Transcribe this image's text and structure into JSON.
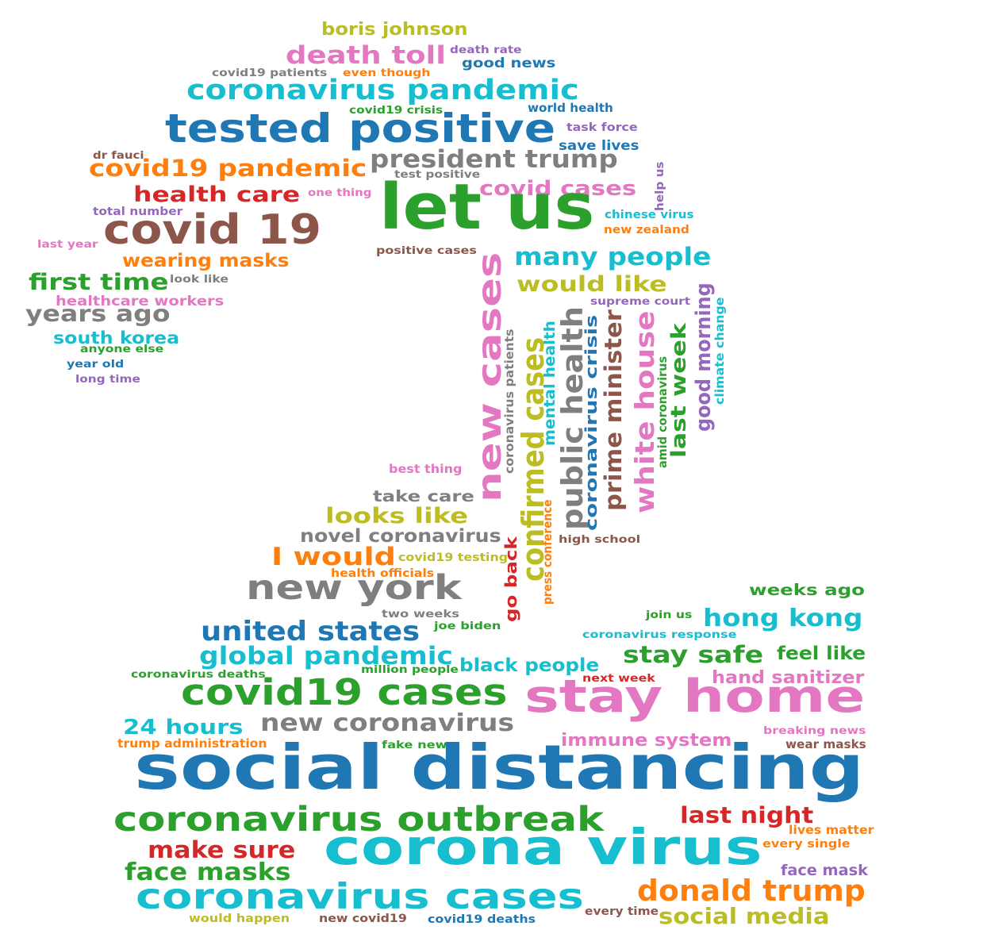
{
  "palette": {
    "blue": "#1f77b4",
    "orange": "#ff7f0e",
    "green": "#2ca02c",
    "red": "#d62728",
    "purple": "#9467bd",
    "brown": "#8c564b",
    "pink": "#e377c2",
    "gray": "#7f7f7f",
    "olive": "#bcbd22",
    "cyan": "#17becf"
  },
  "words": [
    {
      "text": "boris johnson",
      "color": "olive"
    },
    {
      "text": "death toll",
      "color": "pink"
    },
    {
      "text": "death rate",
      "color": "purple"
    },
    {
      "text": "good news",
      "color": "blue"
    },
    {
      "text": "covid19 patients",
      "color": "gray"
    },
    {
      "text": "even though",
      "color": "orange"
    },
    {
      "text": "coronavirus pandemic",
      "color": "cyan"
    },
    {
      "text": "covid19 crisis",
      "color": "green"
    },
    {
      "text": "world health",
      "color": "blue"
    },
    {
      "text": "tested positive",
      "color": "blue"
    },
    {
      "text": "task force",
      "color": "purple"
    },
    {
      "text": "save lives",
      "color": "blue"
    },
    {
      "text": "dr fauci",
      "color": "brown"
    },
    {
      "text": "covid19 pandemic",
      "color": "orange"
    },
    {
      "text": "president trump",
      "color": "gray"
    },
    {
      "text": "test positive",
      "color": "gray"
    },
    {
      "text": "help us",
      "color": "purple"
    },
    {
      "text": "health care",
      "color": "red"
    },
    {
      "text": "one thing",
      "color": "pink"
    },
    {
      "text": "covid cases",
      "color": "pink"
    },
    {
      "text": "let us",
      "color": "green"
    },
    {
      "text": "total number",
      "color": "purple"
    },
    {
      "text": "chinese virus",
      "color": "cyan"
    },
    {
      "text": "covid 19",
      "color": "brown"
    },
    {
      "text": "new zealand",
      "color": "orange"
    },
    {
      "text": "last year",
      "color": "pink"
    },
    {
      "text": "positive cases",
      "color": "brown"
    },
    {
      "text": "wearing masks",
      "color": "orange"
    },
    {
      "text": "many people",
      "color": "cyan"
    },
    {
      "text": "first time",
      "color": "green"
    },
    {
      "text": "look like",
      "color": "gray"
    },
    {
      "text": "would like",
      "color": "olive"
    },
    {
      "text": "healthcare workers",
      "color": "pink"
    },
    {
      "text": "supreme court",
      "color": "purple"
    },
    {
      "text": "years ago",
      "color": "gray"
    },
    {
      "text": "south korea",
      "color": "cyan"
    },
    {
      "text": "anyone else",
      "color": "green"
    },
    {
      "text": "year old",
      "color": "blue"
    },
    {
      "text": "long time",
      "color": "purple"
    },
    {
      "text": "new cases",
      "color": "pink"
    },
    {
      "text": "coronavirus patients",
      "color": "gray"
    },
    {
      "text": "confirmed cases",
      "color": "olive"
    },
    {
      "text": "mental health",
      "color": "cyan"
    },
    {
      "text": "public health",
      "color": "gray"
    },
    {
      "text": "coronavirus crisis",
      "color": "blue"
    },
    {
      "text": "prime minister",
      "color": "brown"
    },
    {
      "text": "white house",
      "color": "pink"
    },
    {
      "text": "amid coronavirus",
      "color": "green"
    },
    {
      "text": "last week",
      "color": "green"
    },
    {
      "text": "good morning",
      "color": "purple"
    },
    {
      "text": "climate change",
      "color": "cyan"
    },
    {
      "text": "best thing",
      "color": "pink"
    },
    {
      "text": "take care",
      "color": "gray"
    },
    {
      "text": "looks like",
      "color": "olive"
    },
    {
      "text": "novel coronavirus",
      "color": "gray"
    },
    {
      "text": "high school",
      "color": "brown"
    },
    {
      "text": "I would",
      "color": "orange"
    },
    {
      "text": "covid19 testing",
      "color": "olive"
    },
    {
      "text": "health officials",
      "color": "orange"
    },
    {
      "text": "go back",
      "color": "red"
    },
    {
      "text": "press conference",
      "color": "orange"
    },
    {
      "text": "new york",
      "color": "gray"
    },
    {
      "text": "weeks ago",
      "color": "green"
    },
    {
      "text": "two weeks",
      "color": "gray"
    },
    {
      "text": "join us",
      "color": "green"
    },
    {
      "text": "hong kong",
      "color": "cyan"
    },
    {
      "text": "united states",
      "color": "blue"
    },
    {
      "text": "joe biden",
      "color": "green"
    },
    {
      "text": "coronavirus response",
      "color": "cyan"
    },
    {
      "text": "global pandemic",
      "color": "cyan"
    },
    {
      "text": "black people",
      "color": "cyan"
    },
    {
      "text": "stay safe",
      "color": "green"
    },
    {
      "text": "feel like",
      "color": "green"
    },
    {
      "text": "coronavirus deaths",
      "color": "green"
    },
    {
      "text": "million people",
      "color": "green"
    },
    {
      "text": "next week",
      "color": "red"
    },
    {
      "text": "hand sanitizer",
      "color": "pink"
    },
    {
      "text": "covid19 cases",
      "color": "green"
    },
    {
      "text": "stay home",
      "color": "pink"
    },
    {
      "text": "24 hours",
      "color": "cyan"
    },
    {
      "text": "new coronavirus",
      "color": "gray"
    },
    {
      "text": "breaking news",
      "color": "pink"
    },
    {
      "text": "trump administration",
      "color": "orange"
    },
    {
      "text": "fake news",
      "color": "green"
    },
    {
      "text": "immune system",
      "color": "pink"
    },
    {
      "text": "wear masks",
      "color": "brown"
    },
    {
      "text": "social distancing",
      "color": "blue"
    },
    {
      "text": "coronavirus outbreak",
      "color": "green"
    },
    {
      "text": "last night",
      "color": "red"
    },
    {
      "text": "lives matter",
      "color": "orange"
    },
    {
      "text": "make sure",
      "color": "red"
    },
    {
      "text": "corona virus",
      "color": "cyan"
    },
    {
      "text": "every single",
      "color": "orange"
    },
    {
      "text": "face masks",
      "color": "green"
    },
    {
      "text": "face mask",
      "color": "purple"
    },
    {
      "text": "coronavirus cases",
      "color": "cyan"
    },
    {
      "text": "donald trump",
      "color": "orange"
    },
    {
      "text": "every time",
      "color": "brown"
    },
    {
      "text": "would happen",
      "color": "olive"
    },
    {
      "text": "new covid19",
      "color": "brown"
    },
    {
      "text": "covid19 deaths",
      "color": "blue"
    },
    {
      "text": "social media",
      "color": "olive"
    }
  ]
}
